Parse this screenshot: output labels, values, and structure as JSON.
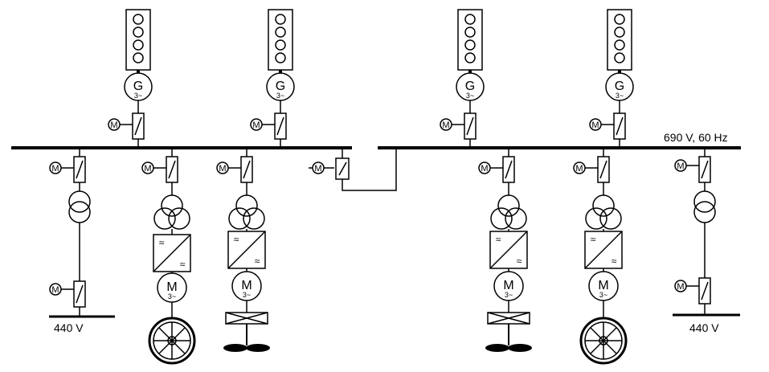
{
  "bus": {
    "label": "690 V, 60 Hz"
  },
  "symbols": {
    "generator": "G",
    "motor": "M",
    "motor_actuator": "M",
    "three_phase": "3~",
    "ac_mark": "≈"
  },
  "lv_buses": [
    {
      "label": "440 V"
    },
    {
      "label": "440 V"
    }
  ],
  "icons": {
    "diesel_engine": "engine-cylinders-icon",
    "circuit_breaker": "circuit-breaker-icon",
    "transformer": "transformer-icon",
    "converter": "frequency-converter-icon",
    "thruster": "azimuth-thruster-icon",
    "propeller": "propeller-wheel-icon"
  },
  "colors": {
    "line": "#000000",
    "background": "#ffffff"
  }
}
